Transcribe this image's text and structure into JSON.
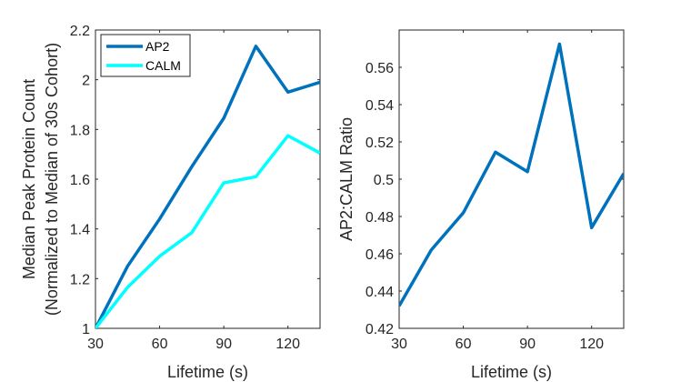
{
  "chart_data": [
    {
      "type": "line",
      "title": "",
      "xlabel": "Lifetime (s)",
      "ylabel_lines": [
        "Median Peak Protein Count",
        "(Normalized to Median of 30s Cohort)"
      ],
      "xlim": [
        30,
        135
      ],
      "ylim": [
        1,
        2.2
      ],
      "xticks": [
        30,
        60,
        90,
        120
      ],
      "yticks": [
        1,
        1.2,
        1.4,
        1.6,
        1.8,
        2,
        2.2
      ],
      "xtick_labels": [
        "30",
        "60",
        "90",
        "120"
      ],
      "ytick_labels": [
        "1",
        "1.2",
        "1.4",
        "1.6",
        "1.8",
        "2",
        "2.2"
      ],
      "legend_position": "top-left",
      "grid": false,
      "x": [
        30,
        45,
        60,
        75,
        90,
        105,
        120,
        135
      ],
      "series": [
        {
          "name": "AP2",
          "color": "#0072BD",
          "values": [
            1.0,
            1.25,
            1.44,
            1.65,
            1.845,
            2.135,
            1.95,
            1.99
          ]
        },
        {
          "name": "CALM",
          "color": "#00FFFF",
          "values": [
            1.0,
            1.165,
            1.29,
            1.385,
            1.585,
            1.61,
            1.775,
            1.705
          ]
        }
      ]
    },
    {
      "type": "line",
      "title": "",
      "xlabel": "Lifetime (s)",
      "ylabel_lines": [
        "AP2:CALM Ratio"
      ],
      "xlim": [
        30,
        135
      ],
      "ylim": [
        0.42,
        0.58
      ],
      "xticks": [
        30,
        60,
        90,
        120
      ],
      "yticks": [
        0.42,
        0.44,
        0.46,
        0.48,
        0.5,
        0.52,
        0.54,
        0.56
      ],
      "xtick_labels": [
        "30",
        "60",
        "90",
        "120"
      ],
      "ytick_labels": [
        "0.42",
        "0.44",
        "0.46",
        "0.48",
        "0.5",
        "0.52",
        "0.54",
        "0.56"
      ],
      "grid": false,
      "x": [
        30,
        45,
        60,
        75,
        90,
        105,
        120,
        135
      ],
      "series": [
        {
          "color": "#0072BD",
          "values": [
            0.432,
            0.462,
            0.482,
            0.5145,
            0.504,
            0.5725,
            0.474,
            0.503
          ]
        }
      ]
    }
  ]
}
